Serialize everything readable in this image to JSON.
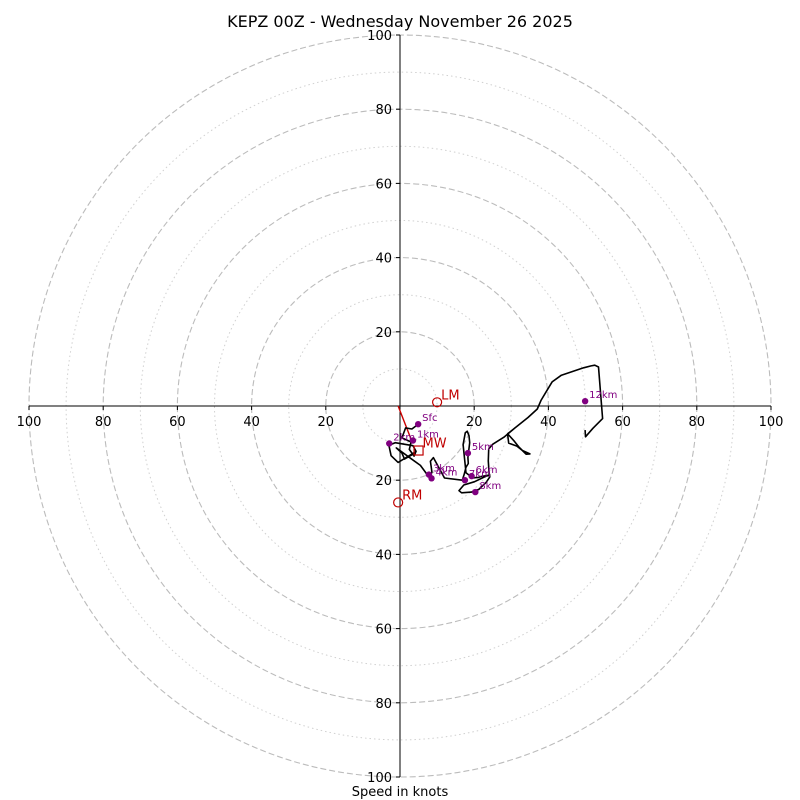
{
  "title": "KEPZ 00Z - Wednesday November 26 2025",
  "chart_data": {
    "type": "scatter",
    "title": "KEPZ 00Z - Wednesday November 26 2025",
    "xlabel": "Speed in knots",
    "ylabel": "",
    "xlim": [
      -100,
      100
    ],
    "ylim": [
      -100,
      100
    ],
    "grid": true,
    "rings_major": [
      20,
      40,
      60,
      80,
      100
    ],
    "rings_minor": [
      10,
      30,
      50,
      70,
      90
    ],
    "x_ticks": [
      {
        "value": -100,
        "label": "100"
      },
      {
        "value": -80,
        "label": "80"
      },
      {
        "value": -60,
        "label": "60"
      },
      {
        "value": -40,
        "label": "40"
      },
      {
        "value": -20,
        "label": "20"
      },
      {
        "value": 20,
        "label": "20"
      },
      {
        "value": 40,
        "label": "40"
      },
      {
        "value": 60,
        "label": "60"
      },
      {
        "value": 80,
        "label": "80"
      },
      {
        "value": 100,
        "label": "100"
      }
    ],
    "y_ticks": [
      {
        "value": 100,
        "label": "100"
      },
      {
        "value": 80,
        "label": "80"
      },
      {
        "value": 60,
        "label": "60"
      },
      {
        "value": 40,
        "label": "40"
      },
      {
        "value": 20,
        "label": "20"
      },
      {
        "value": -20,
        "label": "20"
      },
      {
        "value": -40,
        "label": "40"
      },
      {
        "value": -60,
        "label": "60"
      },
      {
        "value": -80,
        "label": "80"
      },
      {
        "value": -100,
        "label": "100"
      }
    ],
    "series": [
      {
        "name": "hodograph",
        "color": "#000000",
        "x": [
          4.9,
          3.2,
          1.5,
          0.5,
          3.0,
          2.5,
          3.8,
          4.3,
          3.5,
          -1.3,
          -3.0,
          -2.4,
          -0.5,
          4.3,
          3.0,
          1.2,
          0.5,
          -1.0,
          3.0,
          5.5,
          8.0,
          8.6,
          8.4,
          8.2,
          9.0,
          12.0,
          16.8,
          17.3,
          17.8,
          18.4,
          18.3,
          18.5,
          18.8,
          18.6,
          18.1,
          17.6,
          17.0,
          17.8,
          19.6,
          20.5,
          21.0,
          21.8,
          24.2,
          23.0,
          20.1,
          17.2,
          15.9,
          16.6,
          19.3,
          20.5,
          21.2,
          23.2,
          24.2,
          24.0,
          23.8,
          23.9,
          25.0,
          28.0,
          31.0,
          29.0,
          29.3,
          31.5,
          33.0,
          35.0,
          34.0,
          33.0,
          32.0,
          30.8,
          29.0,
          31.5,
          34.5,
          37.0,
          38.0,
          39.5,
          41.0,
          43.5,
          46.5,
          49.5,
          51.5,
          52.5,
          53.5,
          54.6,
          52.0,
          50.0,
          49.9
        ],
        "y": [
          -4.9,
          -6.2,
          -5.9,
          -8.6,
          -9.7,
          -11.7,
          -13.5,
          -12.2,
          -10.7,
          -9.9,
          -10.6,
          -13.4,
          -15.2,
          -12.3,
          -13.3,
          -14.3,
          -12.7,
          -11.3,
          -14.2,
          -16.0,
          -19.4,
          -17.8,
          -16.4,
          -14.9,
          -13.9,
          -19.4,
          -20.0,
          -18.4,
          -16.5,
          -15.5,
          -13.9,
          -12.3,
          -9.9,
          -8.0,
          -6.8,
          -7.2,
          -10.4,
          -18.0,
          -19.4,
          -19.3,
          -19.3,
          -19.0,
          -18.6,
          -19.0,
          -20.4,
          -21.3,
          -22.8,
          -23.4,
          -23.2,
          -22.7,
          -22.5,
          -20.6,
          -19.1,
          -17.8,
          -14.8,
          -11.6,
          -10.3,
          -8.4,
          -5.9,
          -7.6,
          -10.0,
          -10.8,
          -12.0,
          -12.9,
          -13.0,
          -12.0,
          -11.0,
          -9.5,
          -7.5,
          -5.5,
          -3.1,
          -0.8,
          1.5,
          4.0,
          6.5,
          8.3,
          9.3,
          10.3,
          10.8,
          11.0,
          10.5,
          -3.4,
          -6.0,
          -8.3,
          -6.5
        ]
      }
    ],
    "height_markers": [
      {
        "label": "Sfc",
        "x": 4.9,
        "y": -4.9
      },
      {
        "label": "1km",
        "x": 3.5,
        "y": -9.3
      },
      {
        "label": "2km",
        "x": -2.9,
        "y": -10.1
      },
      {
        "label": "3km",
        "x": 7.8,
        "y": -18.5
      },
      {
        "label": "4km",
        "x": 8.5,
        "y": -19.5
      },
      {
        "label": "5km",
        "x": 18.3,
        "y": -12.7
      },
      {
        "label": "6km",
        "x": 19.3,
        "y": -18.9
      },
      {
        "label": "7km",
        "x": 17.5,
        "y": -20.0
      },
      {
        "label": "8km",
        "x": 20.3,
        "y": -23.2
      },
      {
        "label": "12km",
        "x": 49.9,
        "y": 1.3
      }
    ],
    "storm_motion": [
      {
        "label": "LM",
        "x": 10.0,
        "y": 1.0
      },
      {
        "label": "RM",
        "x": -0.5,
        "y": -26.0
      },
      {
        "label": "MW",
        "x": 5.0,
        "y": -12.0
      }
    ],
    "shear_vector": {
      "from": {
        "x": -0.5,
        "y": 0.0
      },
      "to": {
        "x": 3.0,
        "y": -9.0
      }
    }
  }
}
